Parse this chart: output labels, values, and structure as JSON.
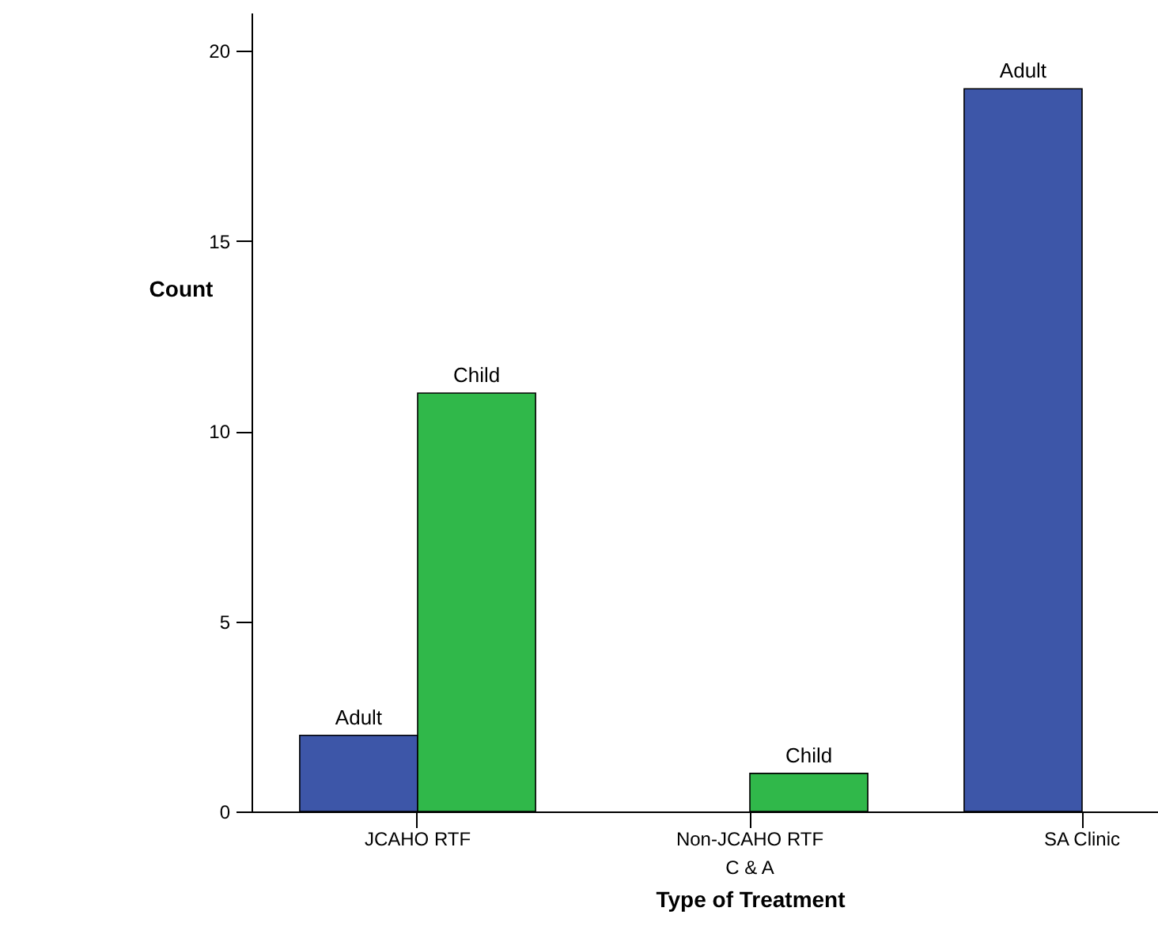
{
  "chart_data": {
    "type": "bar",
    "xlabel": "Type of Treatment",
    "ylabel": "Count",
    "categories": [
      "JCAHO RTF",
      "Non-JCAHO RTF\nC & A",
      "SA Clinic"
    ],
    "series": [
      {
        "name": "Adult",
        "color": "#3d56a8",
        "values": [
          2,
          0,
          19
        ]
      },
      {
        "name": "Child",
        "color": "#30b84a",
        "values": [
          11,
          1,
          0
        ]
      }
    ],
    "ylim": [
      0,
      21
    ],
    "yticks": [
      0,
      5,
      10,
      15,
      20
    ],
    "grid": false,
    "legend": false
  }
}
